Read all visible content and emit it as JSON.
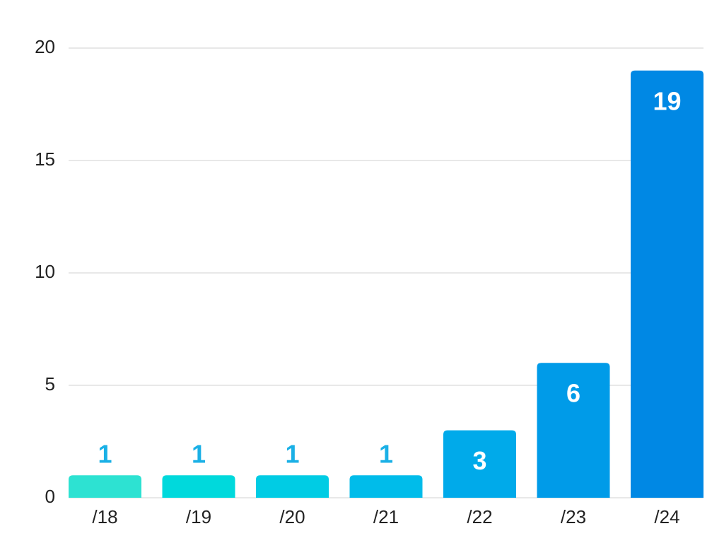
{
  "chart_data": {
    "type": "bar",
    "categories": [
      "/18",
      "/19",
      "/20",
      "/21",
      "/22",
      "/23",
      "/24"
    ],
    "values": [
      1,
      1,
      1,
      1,
      3,
      6,
      19
    ],
    "colors": [
      "#2de2d2",
      "#00d9dc",
      "#00cce4",
      "#00bcea",
      "#00aaea",
      "#009be8",
      "#0088e4"
    ],
    "outside_label_color": "#1ab0e6",
    "inside_label_color": "#ffffff",
    "ylim": [
      0,
      20
    ],
    "yticks": [
      0,
      5,
      10,
      15,
      20
    ],
    "grid": true
  }
}
